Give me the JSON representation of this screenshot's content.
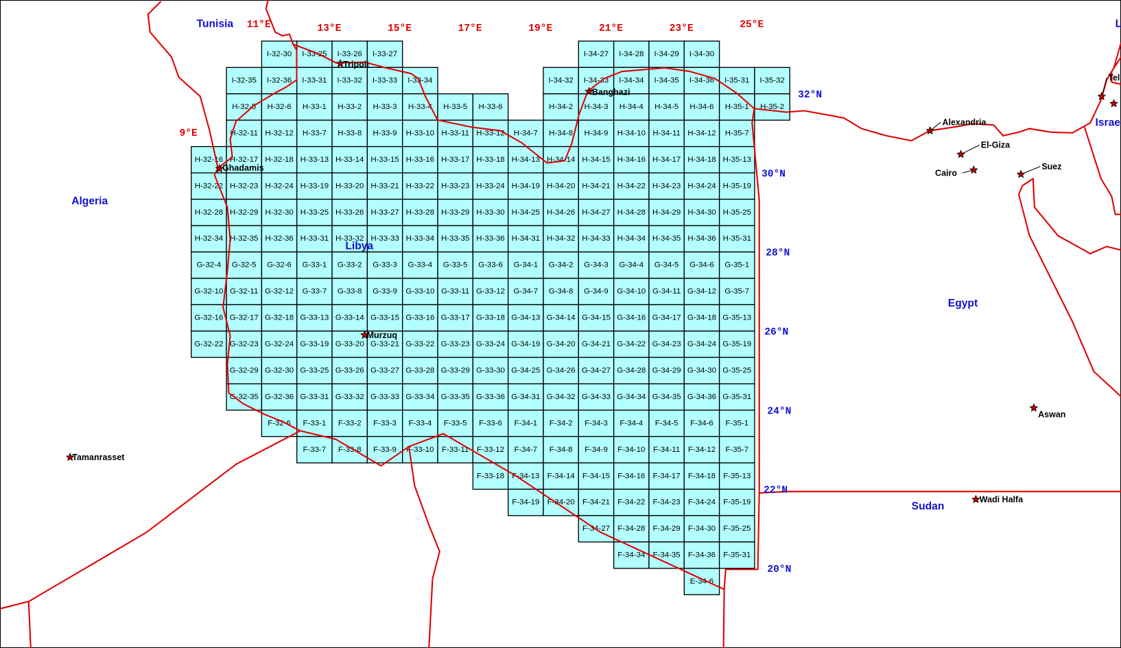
{
  "map": {
    "colors": {
      "sheet_fill": "#b3ffff",
      "border": "#e00000",
      "lat_label": "#1010d0",
      "country": "#1010d0"
    },
    "sheet_groups": [
      {
        "prefix": "I-32",
        "numbers": [
          30,
          35,
          36
        ]
      },
      {
        "prefix": "I-33",
        "numbers": [
          25,
          26,
          27,
          31,
          32,
          33,
          34
        ]
      },
      {
        "prefix": "I-34",
        "numbers": [
          27,
          28,
          29,
          30,
          32,
          33,
          34,
          35,
          36
        ]
      },
      {
        "prefix": "I-35",
        "numbers": [
          31,
          32
        ]
      },
      {
        "prefix": "H-32",
        "numbers": [
          5,
          6,
          11,
          12,
          16,
          17,
          18,
          22,
          23,
          24,
          28,
          29,
          30,
          34,
          35,
          36
        ]
      },
      {
        "prefix": "H-33",
        "numbers": [
          1,
          2,
          3,
          4,
          5,
          6,
          7,
          8,
          9,
          10,
          11,
          12,
          13,
          14,
          15,
          16,
          17,
          18,
          19,
          20,
          21,
          22,
          23,
          24,
          25,
          26,
          27,
          28,
          29,
          30,
          31,
          32,
          33,
          34,
          35,
          36
        ]
      },
      {
        "prefix": "H-34",
        "numbers": [
          2,
          3,
          4,
          5,
          6,
          7,
          8,
          9,
          10,
          11,
          12,
          13,
          14,
          15,
          16,
          17,
          18,
          19,
          20,
          21,
          22,
          23,
          24,
          25,
          26,
          27,
          28,
          29,
          30,
          31,
          32,
          33,
          34,
          35,
          36
        ]
      },
      {
        "prefix": "H-35",
        "numbers": [
          1,
          2,
          7,
          13,
          19,
          25,
          31
        ]
      },
      {
        "prefix": "G-32",
        "numbers": [
          4,
          5,
          6,
          10,
          11,
          12,
          16,
          17,
          18,
          22,
          23,
          24,
          29,
          30,
          35,
          36
        ]
      },
      {
        "prefix": "G-33",
        "numbers": [
          1,
          2,
          3,
          4,
          5,
          6,
          7,
          8,
          9,
          10,
          11,
          12,
          13,
          14,
          15,
          16,
          17,
          18,
          19,
          20,
          21,
          22,
          23,
          24,
          25,
          26,
          27,
          28,
          29,
          30,
          31,
          32,
          33,
          34,
          35,
          36
        ]
      },
      {
        "prefix": "G-34",
        "numbers": [
          1,
          2,
          3,
          4,
          5,
          6,
          7,
          8,
          9,
          10,
          11,
          12,
          13,
          14,
          15,
          16,
          17,
          18,
          19,
          20,
          21,
          22,
          23,
          24,
          25,
          26,
          27,
          28,
          29,
          30,
          31,
          32,
          33,
          34,
          35,
          36
        ]
      },
      {
        "prefix": "G-35",
        "numbers": [
          1,
          7,
          13,
          19,
          25,
          31
        ]
      },
      {
        "prefix": "F-32",
        "numbers": [
          6
        ]
      },
      {
        "prefix": "F-33",
        "numbers": [
          1,
          2,
          3,
          4,
          5,
          6,
          7,
          8,
          9,
          10,
          11,
          12,
          18
        ]
      },
      {
        "prefix": "F-34",
        "numbers": [
          1,
          2,
          3,
          4,
          5,
          6,
          7,
          8,
          9,
          10,
          11,
          12,
          13,
          14,
          15,
          16,
          17,
          18,
          19,
          20,
          21,
          22,
          23,
          24,
          27,
          28,
          29,
          30,
          34,
          35,
          36
        ]
      },
      {
        "prefix": "F-35",
        "numbers": [
          1,
          7,
          13,
          19,
          25,
          31
        ]
      },
      {
        "prefix": "E-34",
        "numbers": [
          6
        ]
      }
    ],
    "longitude_labels": [
      {
        "lon": 9,
        "text": "9°E"
      },
      {
        "lon": 11,
        "text": "11°E"
      },
      {
        "lon": 13,
        "text": "13°E"
      },
      {
        "lon": 15,
        "text": "15°E"
      },
      {
        "lon": 17,
        "text": "17°E"
      },
      {
        "lon": 19,
        "text": "19°E"
      },
      {
        "lon": 21,
        "text": "21°E"
      },
      {
        "lon": 23,
        "text": "23°E"
      },
      {
        "lon": 25,
        "text": "25°E"
      }
    ],
    "latitude_labels": [
      {
        "lat": 32,
        "text": "32°N"
      },
      {
        "lat": 30,
        "text": "30°N"
      },
      {
        "lat": 28,
        "text": "28°N"
      },
      {
        "lat": 26,
        "text": "26°N"
      },
      {
        "lat": 24,
        "text": "24°N"
      },
      {
        "lat": 22,
        "text": "22°N"
      },
      {
        "lat": 20,
        "text": "20°N"
      }
    ],
    "countries": [
      "Tunisia",
      "Algeria",
      "Libya",
      "Egypt",
      "Sudan",
      "Israe",
      "L"
    ],
    "cities": [
      "Tripoli",
      "Banghazi",
      "Ghadamis",
      "Murzuq",
      "Tamanrasset",
      "Alexandria",
      "El-Giza",
      "Cairo",
      "Suez",
      "Aswan",
      "Wadi Halfa",
      "Tel"
    ]
  }
}
